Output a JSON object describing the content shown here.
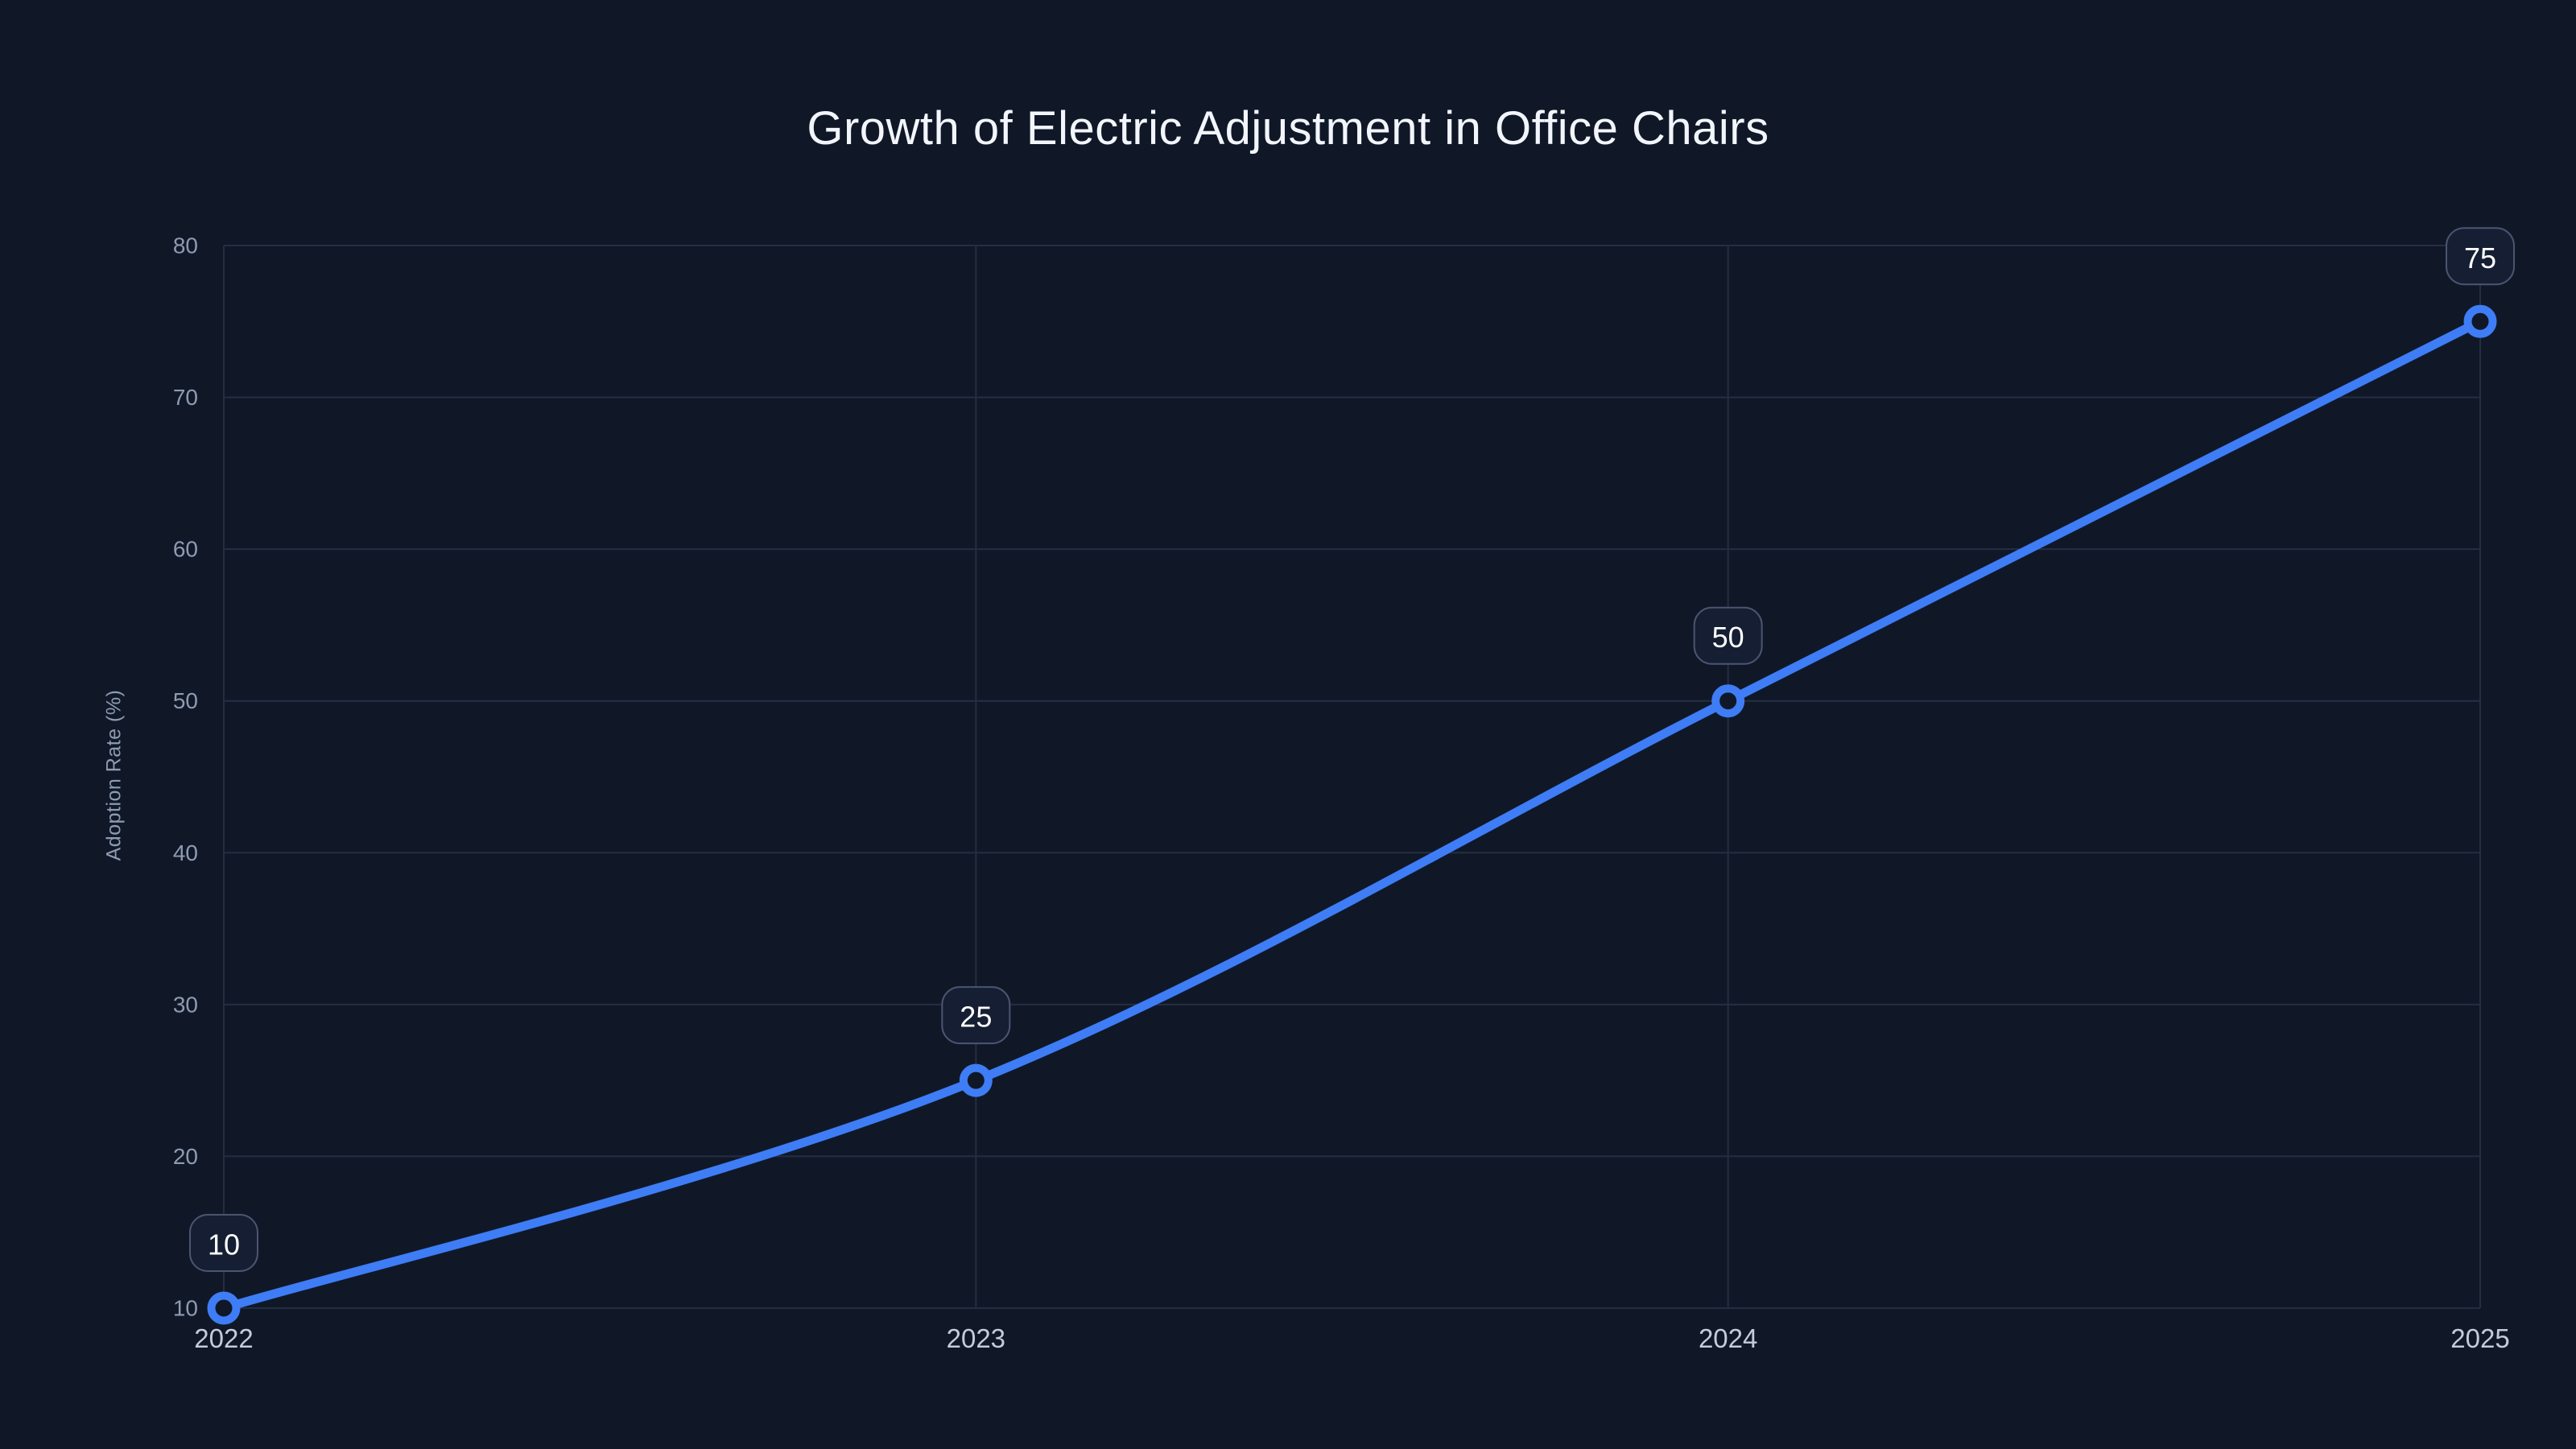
{
  "page": {
    "background": "#101828"
  },
  "chart_data": {
    "type": "line",
    "title": "Growth of Electric Adjustment in Office Chairs",
    "xlabel": "",
    "ylabel": "Adoption Rate (%)",
    "categories": [
      "2022",
      "2023",
      "2024",
      "2025"
    ],
    "series": [
      {
        "name": "Adoption Rate (%)",
        "values": [
          10,
          25,
          50,
          75
        ],
        "point_labels": [
          "10",
          "25",
          "50",
          "75"
        ],
        "color": "#3e7df5",
        "smooth": true,
        "markers": "ring"
      }
    ],
    "ylim": [
      10,
      80
    ],
    "yticks": [
      10,
      20,
      30,
      40,
      50,
      60,
      70,
      80
    ],
    "grid": "both",
    "legend_position": "none"
  },
  "colors": {
    "background": "#101828",
    "title_text": "#f2f6fc",
    "accent_line": "#3e7df5",
    "grid_line": "#242e43",
    "y_tick_text": "#8e9bb0",
    "x_tick_text": "#c3ccda",
    "badge_fill": "#161e33",
    "badge_border": "#4a5570",
    "badge_text": "#ffffff",
    "marker_fill": "#101828"
  }
}
